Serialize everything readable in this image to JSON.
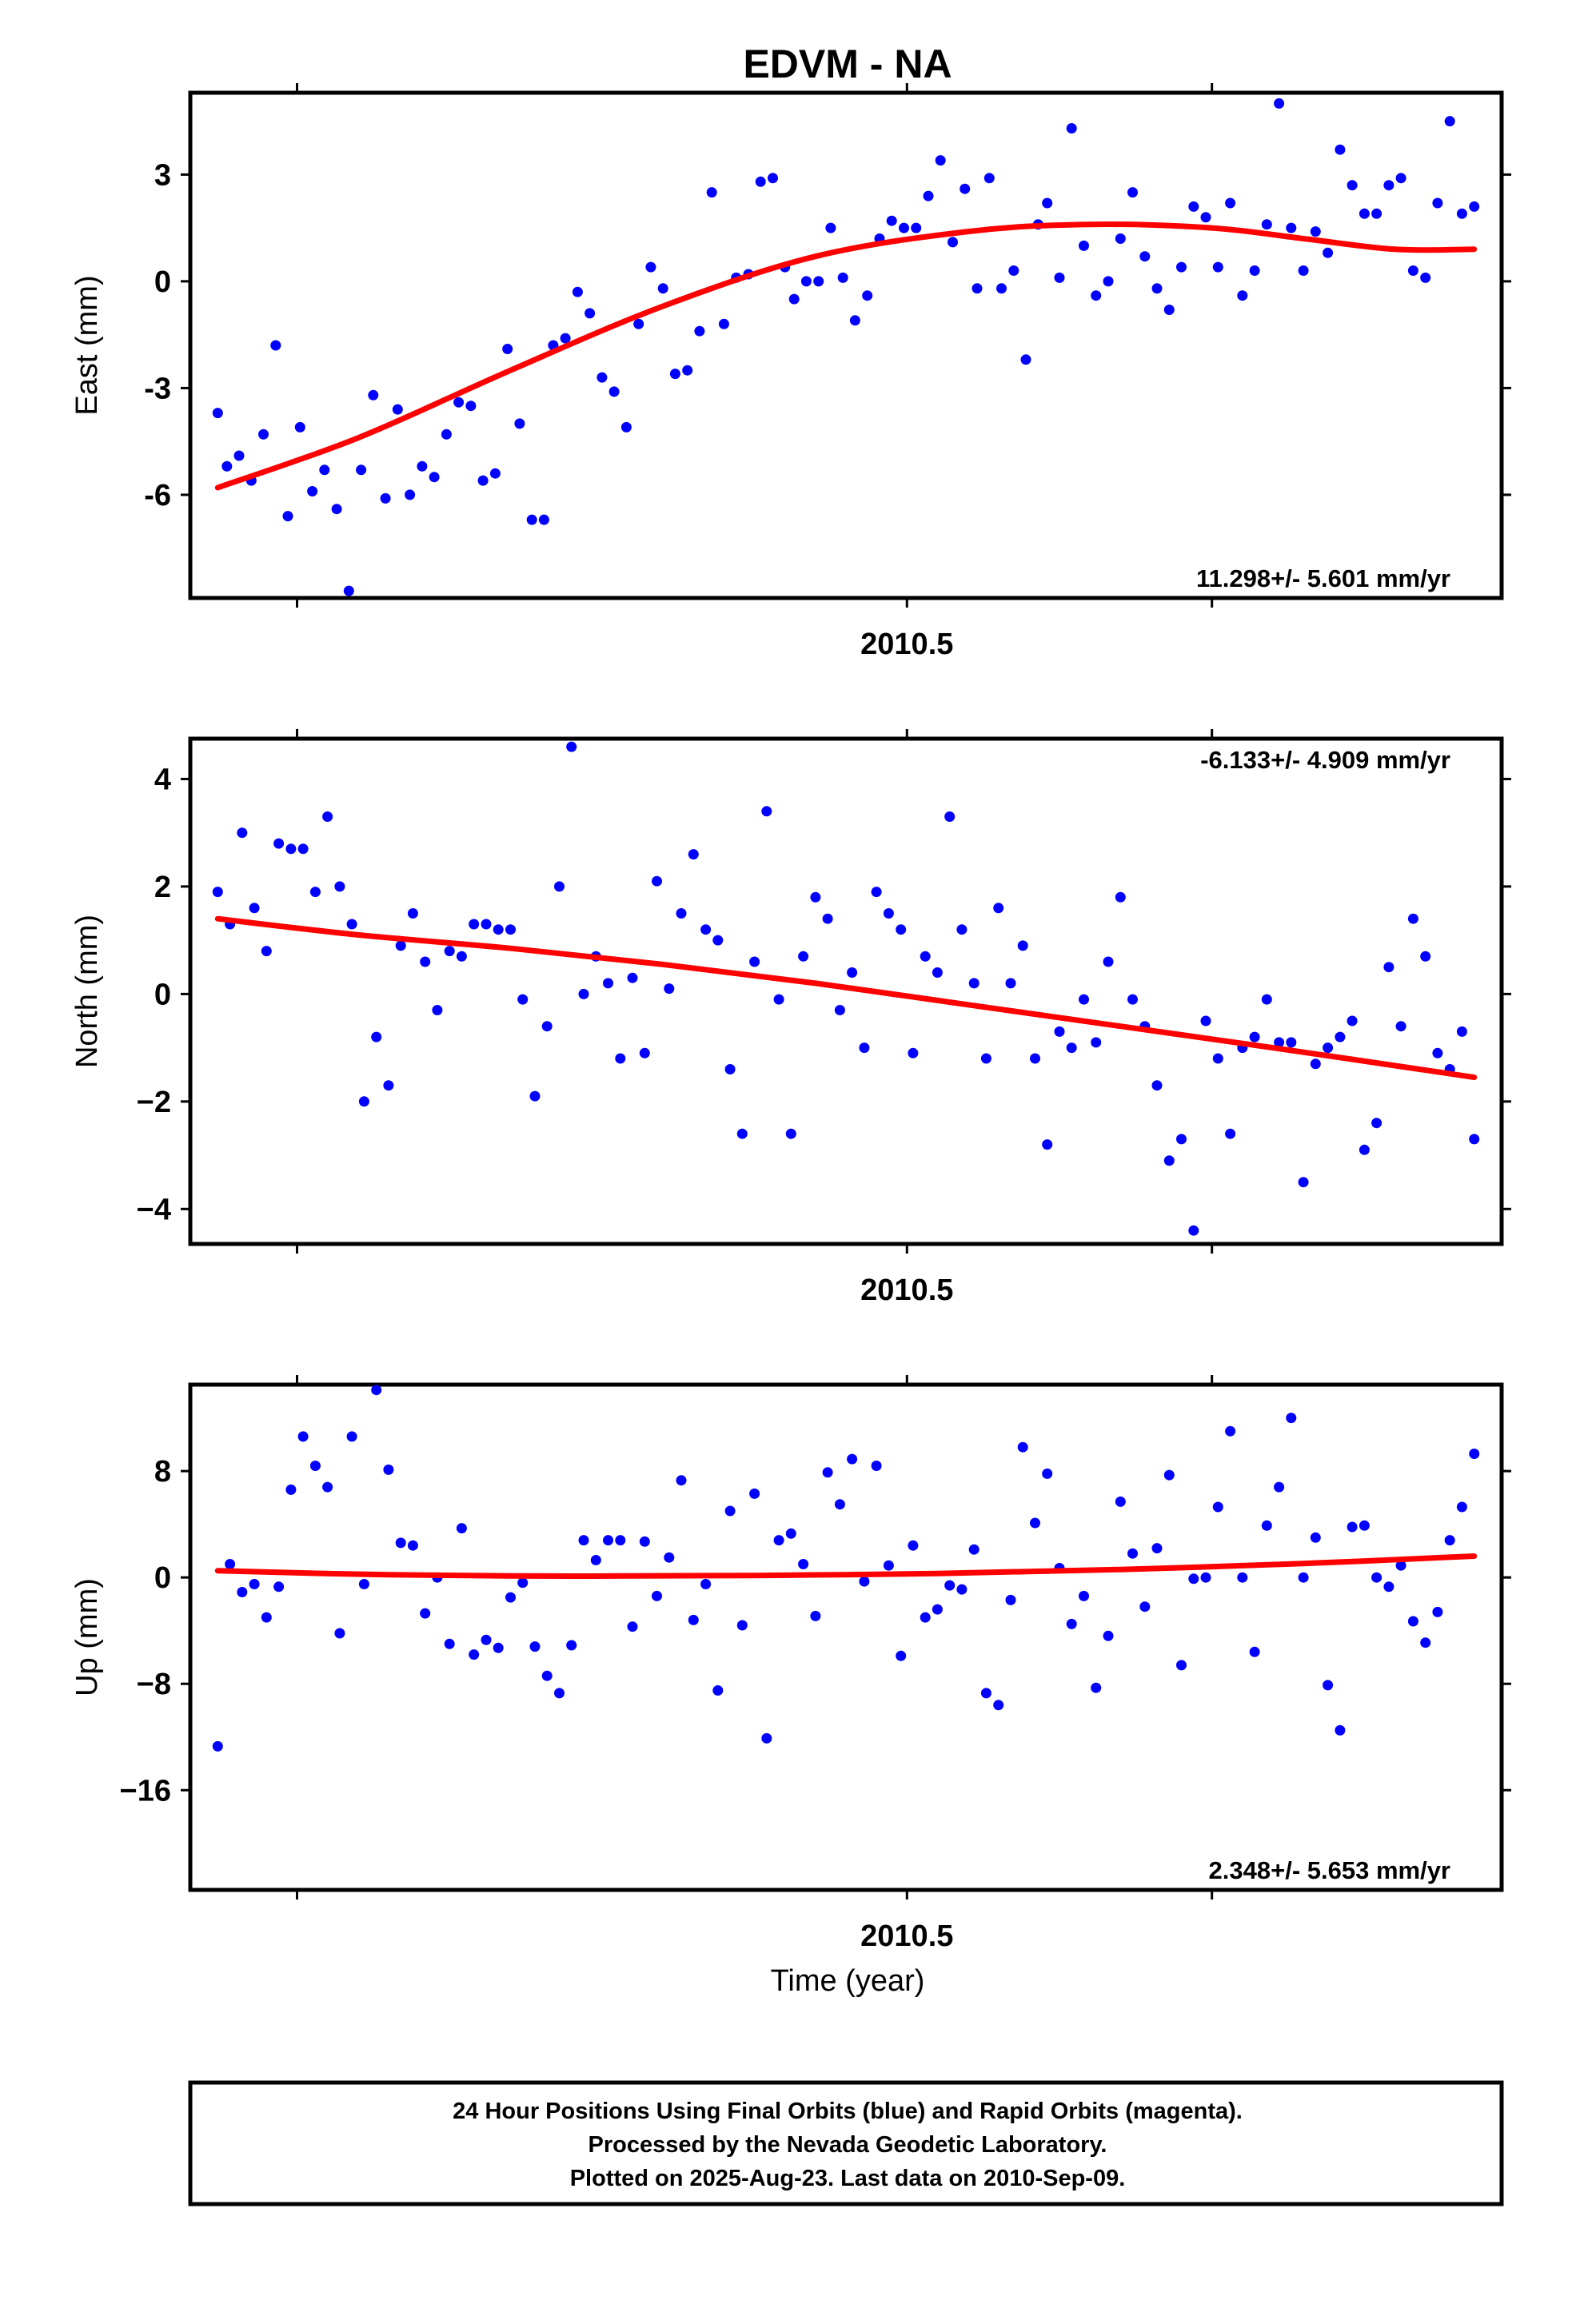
{
  "title": "EDVM - NA",
  "xlabel": "Time (year)",
  "footer": {
    "line1": "24 Hour Positions Using Final Orbits (blue) and Rapid Orbits (magenta).",
    "line2": "Processed by the Nevada Geodetic Laboratory.",
    "line3": "Plotted on 2025-Aug-23. Last data on 2010-Sep-09."
  },
  "colors": {
    "points": "#0000ff",
    "fit": "#ff0000",
    "axes": "#000000"
  },
  "chart_data": [
    {
      "type": "scatter",
      "ylabel": "East (mm)",
      "rate_text": "11.298+/- 5.601 mm/yr",
      "rate_position": "bottom-right",
      "xlim": [
        2010.265,
        2010.695
      ],
      "ylim": [
        -8.9,
        5.3
      ],
      "xticks": [
        2010.3,
        2010.5,
        2010.6
      ],
      "xtick_labels": [
        "",
        "2010.5",
        ""
      ],
      "yticks": [
        -6,
        -3,
        0,
        3
      ],
      "ytick_labels": [
        "-6",
        "-3",
        "0",
        "3"
      ],
      "x": [
        2010.274,
        2010.277,
        2010.281,
        2010.285,
        2010.289,
        2010.293,
        2010.297,
        2010.301,
        2010.305,
        2010.309,
        2010.313,
        2010.317,
        2010.321,
        2010.325,
        2010.329,
        2010.333,
        2010.337,
        2010.341,
        2010.345,
        2010.349,
        2010.353,
        2010.357,
        2010.361,
        2010.365,
        2010.369,
        2010.373,
        2010.377,
        2010.381,
        2010.384,
        2010.388,
        2010.392,
        2010.396,
        2010.4,
        2010.404,
        2010.408,
        2010.412,
        2010.416,
        2010.42,
        2010.424,
        2010.428,
        2010.432,
        2010.436,
        2010.44,
        2010.444,
        2010.448,
        2010.452,
        2010.456,
        2010.46,
        2010.463,
        2010.467,
        2010.471,
        2010.475,
        2010.479,
        2010.483,
        2010.487,
        2010.491,
        2010.495,
        2010.499,
        2010.503,
        2010.507,
        2010.511,
        2010.515,
        2010.519,
        2010.523,
        2010.527,
        2010.531,
        2010.535,
        2010.539,
        2010.543,
        2010.546,
        2010.55,
        2010.554,
        2010.558,
        2010.562,
        2010.566,
        2010.57,
        2010.574,
        2010.578,
        2010.582,
        2010.586,
        2010.59,
        2010.594,
        2010.598,
        2010.602,
        2010.606,
        2010.61,
        2010.614,
        2010.618,
        2010.622,
        2010.626,
        2010.63,
        2010.634,
        2010.638,
        2010.642,
        2010.646,
        2010.65,
        2010.654,
        2010.658,
        2010.662,
        2010.666,
        2010.67,
        2010.674,
        2010.678,
        2010.682,
        2010.686
      ],
      "y": [
        -3.7,
        -5.2,
        -4.9,
        -5.6,
        -4.3,
        -1.8,
        -6.6,
        -4.1,
        -5.9,
        -5.3,
        -6.4,
        -8.7,
        -5.3,
        -3.2,
        -6.1,
        -3.6,
        -6.0,
        -5.2,
        -5.5,
        -4.3,
        -3.4,
        -3.5,
        -5.6,
        -5.4,
        -1.9,
        -4.0,
        -6.7,
        -6.7,
        -1.8,
        -1.6,
        -0.3,
        -0.9,
        -2.7,
        -3.1,
        -4.1,
        -1.2,
        0.4,
        -0.2,
        -2.6,
        -2.5,
        -1.4,
        2.5,
        -1.2,
        0.1,
        0.2,
        2.8,
        2.9,
        0.4,
        -0.5,
        0.0,
        0.0,
        1.5,
        0.1,
        -1.1,
        -0.4,
        1.2,
        1.7,
        1.5,
        1.5,
        2.4,
        3.4,
        1.1,
        2.6,
        -0.2,
        2.9,
        -0.2,
        0.3,
        -2.2,
        1.6,
        2.2,
        0.1,
        4.3,
        1.0,
        -0.4,
        0.0,
        1.2,
        2.5,
        0.7,
        -0.2,
        -0.8,
        0.4,
        2.1,
        1.8,
        0.4,
        2.2,
        -0.4,
        0.3,
        1.6,
        5.0,
        1.5,
        0.3,
        1.4,
        0.8,
        3.7,
        2.7,
        1.9,
        1.9,
        2.7,
        2.9,
        0.3,
        0.1,
        2.2,
        4.5,
        1.9,
        2.1
      ],
      "fit": {
        "x": [
          2010.274,
          2010.32,
          2010.37,
          2010.42,
          2010.47,
          2010.52,
          2010.56,
          2010.6,
          2010.63,
          2010.66,
          2010.686
        ],
        "y": [
          -5.8,
          -4.4,
          -2.5,
          -0.7,
          0.7,
          1.4,
          1.6,
          1.5,
          1.2,
          0.9,
          0.9
        ]
      }
    },
    {
      "type": "scatter",
      "ylabel": "North (mm)",
      "rate_text": "-6.133+/- 4.909 mm/yr",
      "rate_position": "top-right",
      "xlim": [
        2010.265,
        2010.695
      ],
      "ylim": [
        -4.65,
        4.75
      ],
      "xticks": [
        2010.3,
        2010.5,
        2010.6
      ],
      "xtick_labels": [
        "",
        "2010.5",
        ""
      ],
      "yticks": [
        -4,
        -2,
        0,
        2,
        4
      ],
      "ytick_labels": [
        "−4",
        "−2",
        "0",
        "2",
        "4"
      ],
      "x": [
        2010.274,
        2010.278,
        2010.282,
        2010.286,
        2010.29,
        2010.294,
        2010.298,
        2010.302,
        2010.306,
        2010.31,
        2010.314,
        2010.318,
        2010.322,
        2010.326,
        2010.33,
        2010.334,
        2010.338,
        2010.342,
        2010.346,
        2010.35,
        2010.354,
        2010.358,
        2010.362,
        2010.366,
        2010.37,
        2010.374,
        2010.378,
        2010.382,
        2010.386,
        2010.39,
        2010.394,
        2010.398,
        2010.402,
        2010.406,
        2010.41,
        2010.414,
        2010.418,
        2010.422,
        2010.426,
        2010.43,
        2010.434,
        2010.438,
        2010.442,
        2010.446,
        2010.45,
        2010.454,
        2010.458,
        2010.462,
        2010.466,
        2010.47,
        2010.474,
        2010.478,
        2010.482,
        2010.486,
        2010.49,
        2010.494,
        2010.498,
        2010.502,
        2010.506,
        2010.51,
        2010.514,
        2010.518,
        2010.522,
        2010.526,
        2010.53,
        2010.534,
        2010.538,
        2010.542,
        2010.546,
        2010.55,
        2010.554,
        2010.558,
        2010.562,
        2010.566,
        2010.57,
        2010.574,
        2010.578,
        2010.582,
        2010.586,
        2010.59,
        2010.594,
        2010.598,
        2010.602,
        2010.606,
        2010.61,
        2010.614,
        2010.618,
        2010.622,
        2010.626,
        2010.63,
        2010.634,
        2010.638,
        2010.642,
        2010.646,
        2010.65,
        2010.654,
        2010.658,
        2010.662,
        2010.666,
        2010.67,
        2010.674,
        2010.678,
        2010.682,
        2010.686
      ],
      "y": [
        1.9,
        1.3,
        3.0,
        1.6,
        0.8,
        2.8,
        2.7,
        2.7,
        1.9,
        3.3,
        2.0,
        1.3,
        -2.0,
        -0.8,
        -1.7,
        0.9,
        1.5,
        0.6,
        -0.3,
        0.8,
        0.7,
        1.3,
        1.3,
        1.2,
        1.2,
        -0.1,
        -1.9,
        -0.6,
        2.0,
        4.6,
        0.0,
        0.7,
        0.2,
        -1.2,
        0.3,
        -1.1,
        2.1,
        0.1,
        1.5,
        2.6,
        1.2,
        1.0,
        -1.4,
        -2.6,
        0.6,
        3.4,
        -0.1,
        -2.6,
        0.7,
        1.8,
        1.4,
        -0.3,
        0.4,
        -1.0,
        1.9,
        1.5,
        1.2,
        -1.1,
        0.7,
        0.4,
        3.3,
        1.2,
        0.2,
        -1.2,
        1.6,
        0.2,
        0.9,
        -1.2,
        -2.8,
        -0.7,
        -1.0,
        -0.1,
        -0.9,
        0.6,
        1.8,
        -0.1,
        -0.6,
        -1.7,
        -3.1,
        -2.7,
        -4.4,
        -0.5,
        -1.2,
        -2.6,
        -1.0,
        -0.8,
        -0.1,
        -0.9,
        -0.9,
        -3.5,
        -1.3,
        -1.0,
        -0.8,
        -0.5,
        -2.9,
        -2.4,
        0.5,
        -0.6,
        1.4,
        0.7,
        -1.1,
        -1.4,
        -0.7,
        -2.7
      ],
      "fit": {
        "x": [
          2010.274,
          2010.32,
          2010.37,
          2010.42,
          2010.47,
          2010.52,
          2010.57,
          2010.62,
          2010.686
        ],
        "y": [
          1.4,
          1.1,
          0.85,
          0.55,
          0.2,
          -0.2,
          -0.6,
          -1.0,
          -1.55
        ]
      }
    },
    {
      "type": "scatter",
      "ylabel": "Up (mm)",
      "rate_text": "2.348+/- 5.653 mm/yr",
      "rate_position": "bottom-right",
      "xlim": [
        2010.265,
        2010.695
      ],
      "ylim": [
        -23.5,
        14.5
      ],
      "xticks": [
        2010.3,
        2010.5,
        2010.6
      ],
      "xtick_labels": [
        "",
        "2010.5",
        ""
      ],
      "yticks": [
        -16,
        -8,
        0,
        8
      ],
      "ytick_labels": [
        "−16",
        "−8",
        "0",
        "8"
      ],
      "x": [
        2010.274,
        2010.278,
        2010.282,
        2010.286,
        2010.29,
        2010.294,
        2010.298,
        2010.302,
        2010.306,
        2010.31,
        2010.314,
        2010.318,
        2010.322,
        2010.326,
        2010.33,
        2010.334,
        2010.338,
        2010.342,
        2010.346,
        2010.35,
        2010.354,
        2010.358,
        2010.362,
        2010.366,
        2010.37,
        2010.374,
        2010.378,
        2010.382,
        2010.386,
        2010.39,
        2010.394,
        2010.398,
        2010.402,
        2010.406,
        2010.41,
        2010.414,
        2010.418,
        2010.422,
        2010.426,
        2010.43,
        2010.434,
        2010.438,
        2010.442,
        2010.446,
        2010.45,
        2010.454,
        2010.458,
        2010.462,
        2010.466,
        2010.47,
        2010.474,
        2010.478,
        2010.482,
        2010.486,
        2010.49,
        2010.494,
        2010.498,
        2010.502,
        2010.506,
        2010.51,
        2010.514,
        2010.518,
        2010.522,
        2010.526,
        2010.53,
        2010.534,
        2010.538,
        2010.542,
        2010.546,
        2010.55,
        2010.554,
        2010.558,
        2010.562,
        2010.566,
        2010.57,
        2010.574,
        2010.578,
        2010.582,
        2010.586,
        2010.59,
        2010.594,
        2010.598,
        2010.602,
        2010.606,
        2010.61,
        2010.614,
        2010.618,
        2010.622,
        2010.626,
        2010.63,
        2010.634,
        2010.638,
        2010.642,
        2010.646,
        2010.65,
        2010.654,
        2010.658,
        2010.662,
        2010.666,
        2010.67,
        2010.674,
        2010.678,
        2010.682,
        2010.686
      ],
      "y": [
        -12.7,
        1.0,
        -1.1,
        -0.5,
        -3.0,
        -0.7,
        6.6,
        10.6,
        8.4,
        6.8,
        -4.2,
        10.6,
        -0.5,
        14.1,
        8.1,
        2.6,
        2.4,
        -2.7,
        0.0,
        -5.0,
        3.7,
        -5.8,
        -4.7,
        -5.3,
        -1.5,
        -0.4,
        -5.2,
        -7.4,
        -8.7,
        -5.1,
        2.8,
        1.3,
        2.8,
        2.8,
        -3.7,
        2.7,
        -1.4,
        1.5,
        7.3,
        -3.2,
        -0.5,
        -8.5,
        5.0,
        -3.6,
        6.3,
        -12.1,
        2.8,
        3.3,
        1.0,
        -2.9,
        7.9,
        5.5,
        8.9,
        -0.3,
        8.4,
        0.9,
        -5.9,
        2.4,
        -3.0,
        -2.4,
        -0.6,
        -0.9,
        2.1,
        -8.7,
        -9.6,
        -1.7,
        9.8,
        4.1,
        7.8,
        0.7,
        -3.5,
        -1.4,
        -8.3,
        -4.4,
        5.7,
        1.8,
        -2.2,
        2.2,
        7.7,
        -6.6,
        -0.1,
        0.0,
        5.3,
        11.0,
        0.0,
        -5.6,
        3.9,
        6.8,
        12.0,
        0.0,
        3.0,
        -8.1,
        -11.5,
        3.8,
        3.9,
        0.0,
        -0.7,
        0.9,
        -3.3,
        -4.9,
        -2.6,
        2.8,
        5.3,
        9.3
      ],
      "fit": {
        "x": [
          2010.274,
          2010.33,
          2010.39,
          2010.45,
          2010.51,
          2010.57,
          2010.63,
          2010.686
        ],
        "y": [
          0.5,
          0.2,
          0.1,
          0.15,
          0.3,
          0.6,
          1.05,
          1.6
        ]
      }
    }
  ]
}
